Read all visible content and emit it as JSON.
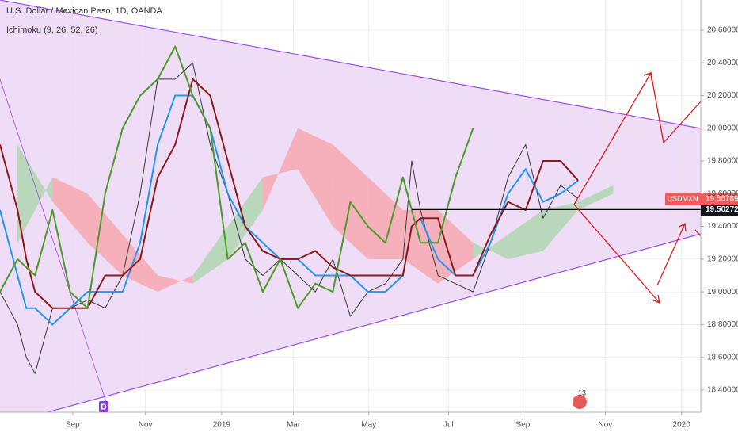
{
  "chart_data": {
    "type": "line",
    "title": "U.S. Dollar / Mexican Peso, 1D, OANDA",
    "subtitle": "Ichimoku (9, 26, 52, 26)",
    "xlim": [
      0,
      80
    ],
    "ylim": [
      18.264,
      20.784
    ],
    "xticks": [
      {
        "value": 8.3,
        "label": "Sep"
      },
      {
        "value": 16.6,
        "label": "Nov"
      },
      {
        "value": 25.3,
        "label": "2019"
      },
      {
        "value": 33.5,
        "label": "Mar"
      },
      {
        "value": 42.1,
        "label": "May"
      },
      {
        "value": 51.2,
        "label": "Jul"
      },
      {
        "value": 59.7,
        "label": "Sep"
      },
      {
        "value": 69.1,
        "label": "Nov"
      },
      {
        "value": 77.8,
        "label": "2020"
      }
    ],
    "yticks": [
      {
        "value": 18.4,
        "label": "18.40000"
      },
      {
        "value": 18.6,
        "label": "18.60000"
      },
      {
        "value": 18.8,
        "label": "18.80000"
      },
      {
        "value": 19.0,
        "label": "19.00000"
      },
      {
        "value": 19.2,
        "label": "19.20000"
      },
      {
        "value": 19.4,
        "label": "19.40000"
      },
      {
        "value": 19.6,
        "label": "19.60000"
      },
      {
        "value": 19.8,
        "label": "19.80000"
      },
      {
        "value": 20.0,
        "label": "20.00000"
      },
      {
        "value": 20.2,
        "label": "20.20000"
      },
      {
        "value": 20.4,
        "label": "20.40000"
      },
      {
        "value": 20.6,
        "label": "20.60000"
      }
    ],
    "grid": true,
    "cloud": {
      "x": [
        2,
        6,
        10,
        14,
        18,
        22,
        26,
        30,
        34,
        38,
        42,
        46,
        50,
        54,
        58,
        62,
        66,
        70
      ],
      "span_a": [
        19.9,
        19.55,
        19.3,
        19.1,
        19.0,
        19.1,
        19.4,
        19.7,
        19.75,
        19.4,
        19.2,
        19.2,
        19.05,
        19.2,
        19.35,
        19.5,
        19.55,
        19.65
      ],
      "span_b": [
        19.3,
        19.7,
        19.6,
        19.35,
        19.1,
        19.05,
        19.2,
        19.5,
        20.0,
        19.9,
        19.7,
        19.5,
        19.5,
        19.3,
        19.2,
        19.25,
        19.5,
        19.6
      ],
      "up_color": "#a5d6a7",
      "down_color": "#f7a1a8"
    },
    "series": [
      {
        "color": "#3a3a3a",
        "x": [
          0,
          2,
          3,
          4,
          6,
          8,
          10,
          12,
          14,
          16,
          18,
          20,
          22,
          24,
          26,
          28,
          30,
          32,
          34,
          36,
          38,
          40,
          42,
          44,
          46,
          47,
          48,
          50,
          52,
          54,
          56,
          58,
          60,
          62,
          64,
          66
        ],
        "values": [
          19.0,
          18.8,
          18.6,
          18.5,
          18.9,
          18.9,
          18.95,
          18.9,
          19.1,
          19.6,
          20.3,
          20.3,
          20.4,
          19.9,
          19.6,
          19.2,
          19.1,
          19.2,
          19.1,
          19.0,
          19.2,
          18.85,
          19.0,
          19.05,
          19.2,
          19.8,
          19.5,
          19.1,
          19.05,
          19.0,
          19.3,
          19.7,
          19.9,
          19.45,
          19.65,
          19.57
        ]
      },
      {
        "color": "#2196f3",
        "x": [
          0,
          2,
          3,
          4,
          6,
          8,
          10,
          12,
          14,
          16,
          18,
          20,
          22,
          24,
          26,
          28,
          30,
          32,
          34,
          36,
          38,
          40,
          42,
          44,
          46,
          47,
          48,
          50,
          52,
          54,
          56,
          58,
          60,
          62,
          64,
          66
        ],
        "values": [
          19.5,
          19.1,
          18.9,
          18.9,
          18.8,
          18.9,
          19.0,
          19.0,
          19.0,
          19.3,
          19.9,
          20.2,
          20.2,
          20.0,
          19.6,
          19.4,
          19.3,
          19.2,
          19.2,
          19.1,
          19.1,
          19.1,
          19.0,
          19.0,
          19.1,
          19.4,
          19.45,
          19.2,
          19.1,
          19.1,
          19.3,
          19.6,
          19.75,
          19.55,
          19.6,
          19.68
        ]
      },
      {
        "color": "#8b1a1a",
        "x": [
          0,
          2,
          3,
          4,
          6,
          8,
          10,
          12,
          14,
          16,
          18,
          20,
          22,
          24,
          26,
          28,
          30,
          32,
          34,
          36,
          38,
          40,
          42,
          44,
          46,
          47,
          48,
          50,
          52,
          54,
          56,
          58,
          60,
          62,
          64,
          66
        ],
        "values": [
          19.9,
          19.5,
          19.2,
          19.0,
          18.9,
          18.9,
          18.9,
          19.1,
          19.1,
          19.2,
          19.7,
          19.9,
          20.3,
          20.2,
          19.8,
          19.4,
          19.25,
          19.2,
          19.2,
          19.25,
          19.15,
          19.1,
          19.1,
          19.1,
          19.1,
          19.4,
          19.45,
          19.45,
          19.1,
          19.1,
          19.35,
          19.55,
          19.5,
          19.8,
          19.8,
          19.68
        ]
      },
      {
        "color": "#4c9a2a",
        "x": [
          0,
          2,
          4,
          6,
          8,
          10,
          12,
          14,
          16,
          18,
          20,
          22,
          24,
          26,
          28,
          30,
          32,
          34,
          36,
          38,
          40,
          42,
          44,
          46,
          48,
          50,
          52,
          54
        ],
        "values": [
          19.0,
          19.2,
          19.1,
          19.5,
          19.0,
          18.9,
          19.6,
          20.0,
          20.2,
          20.3,
          20.5,
          20.2,
          20.0,
          19.2,
          19.3,
          19.0,
          19.2,
          18.9,
          19.05,
          19.0,
          19.55,
          19.4,
          19.3,
          19.7,
          19.3,
          19.3,
          19.7,
          20.0
        ]
      }
    ],
    "last_price": {
      "symbol": "USDMXN",
      "value": 19.56789
    },
    "line_price": 19.50272,
    "markers": [
      "D",
      "13"
    ]
  }
}
